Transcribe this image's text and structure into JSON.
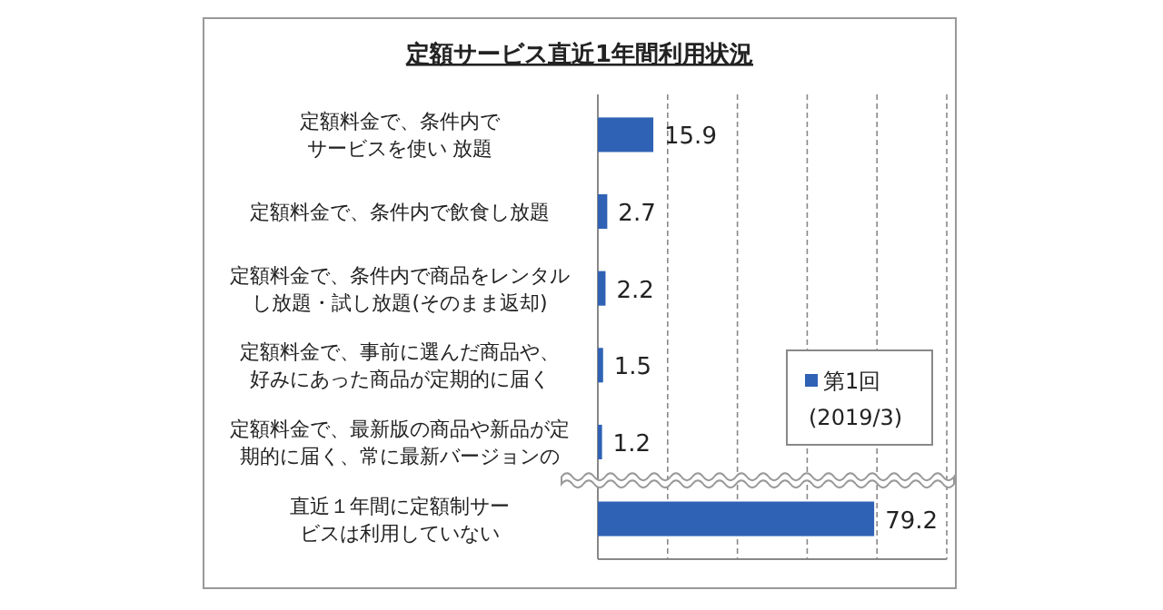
{
  "chart_data": {
    "type": "bar",
    "orientation": "horizontal",
    "title": "定額サービス直近1年間利用状況",
    "categories": [
      "定額料金で、条件内でサービスを使い 放題",
      "定額料金で、条件内で飲食し放題",
      "定額料金で、条件内で商品をレンタルし放題・試し放題(そのまま返却)",
      "定額料金で、事前に選んだ商品や、好みにあった商品が定期的に届く",
      "定額料金で、最新版の商品や新品が定期的に届く、常に最新バージョンの",
      "直近１年間に定額制サービスは利用していない"
    ],
    "series": [
      {
        "name": "第1回\n(2019/3)",
        "color": "#2f62b5",
        "values": [
          15.9,
          2.7,
          2.2,
          1.5,
          1.2,
          79.2
        ]
      }
    ],
    "xlim": [
      0,
      100
    ],
    "xticks": [
      {
        "value": 0,
        "label": null
      },
      {
        "value": 20,
        "label": null
      },
      {
        "value": 40,
        "label": null
      },
      {
        "value": 60,
        "label": null
      },
      {
        "value": 80,
        "label": null
      },
      {
        "value": 100,
        "label": null
      }
    ],
    "grid": "x",
    "data_labels": true,
    "legend": "right"
  }
}
